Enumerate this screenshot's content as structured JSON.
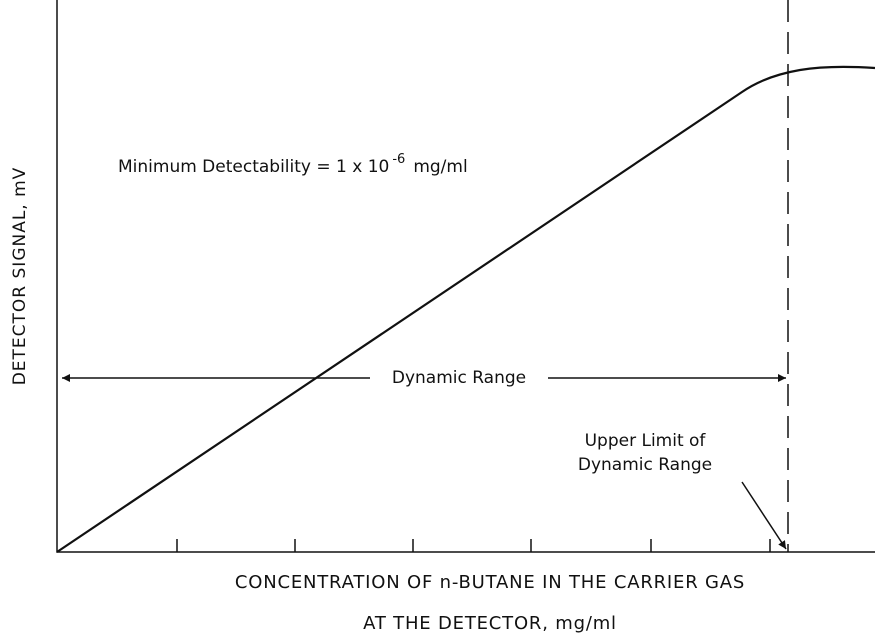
{
  "y_axis_label": "DETECTOR SIGNAL, mV",
  "annotation": {
    "text": "Minimum Detectability = 1 x 10",
    "exponent": "-6",
    "unit": "mg/ml"
  },
  "range_label": "Dynamic Range",
  "limit_label": [
    "Upper Limit of",
    "Dynamic Range"
  ],
  "x_axis_label": [
    "CONCENTRATION OF n-BUTANE IN THE CARRIER GAS",
    "AT THE DETECTOR, mg/ml"
  ]
}
